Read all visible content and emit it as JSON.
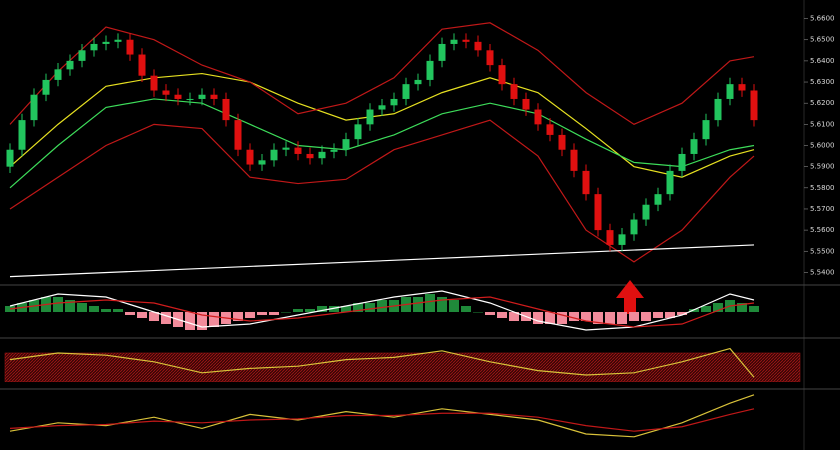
{
  "chart_data": [
    {
      "type": "candlestick",
      "up_color": "#22c55e",
      "down_color": "#e01010",
      "open": [
        5.59,
        5.598,
        5.612,
        5.624,
        5.631,
        5.636,
        5.64,
        5.645,
        5.648,
        5.649,
        5.65,
        5.643,
        5.633,
        5.626,
        5.624,
        5.622,
        5.622,
        5.624,
        5.622,
        5.612,
        5.598,
        5.591,
        5.593,
        5.598,
        5.599,
        5.596,
        5.594,
        5.597,
        5.598,
        5.603,
        5.61,
        5.617,
        5.619,
        5.622,
        5.629,
        5.631,
        5.64,
        5.648,
        5.65,
        5.649,
        5.645,
        5.638,
        5.629,
        5.622,
        5.617,
        5.61,
        5.605,
        5.598,
        5.588,
        5.577,
        5.56,
        5.553,
        5.558,
        5.565,
        5.572,
        5.577,
        5.588,
        5.596,
        5.603,
        5.612,
        5.622,
        5.629,
        5.626
      ],
      "high": [
        5.601,
        5.615,
        5.627,
        5.634,
        5.639,
        5.643,
        5.648,
        5.651,
        5.652,
        5.653,
        5.653,
        5.646,
        5.636,
        5.629,
        5.627,
        5.625,
        5.627,
        5.627,
        5.625,
        5.615,
        5.601,
        5.596,
        5.601,
        5.602,
        5.602,
        5.599,
        5.6,
        5.601,
        5.606,
        5.613,
        5.62,
        5.622,
        5.625,
        5.632,
        5.634,
        5.643,
        5.651,
        5.653,
        5.653,
        5.652,
        5.648,
        5.641,
        5.632,
        5.625,
        5.62,
        5.613,
        5.608,
        5.601,
        5.591,
        5.58,
        5.563,
        5.561,
        5.568,
        5.575,
        5.58,
        5.591,
        5.599,
        5.606,
        5.615,
        5.625,
        5.632,
        5.632,
        5.629
      ],
      "low": [
        5.587,
        5.595,
        5.609,
        5.621,
        5.628,
        5.633,
        5.637,
        5.642,
        5.645,
        5.646,
        5.64,
        5.63,
        5.623,
        5.621,
        5.619,
        5.619,
        5.619,
        5.619,
        5.609,
        5.595,
        5.588,
        5.588,
        5.59,
        5.595,
        5.593,
        5.591,
        5.591,
        5.594,
        5.595,
        5.6,
        5.607,
        5.614,
        5.616,
        5.619,
        5.626,
        5.628,
        5.637,
        5.645,
        5.646,
        5.642,
        5.635,
        5.626,
        5.619,
        5.614,
        5.607,
        5.602,
        5.595,
        5.585,
        5.574,
        5.557,
        5.55,
        5.55,
        5.555,
        5.562,
        5.569,
        5.574,
        5.585,
        5.593,
        5.6,
        5.609,
        5.619,
        5.623,
        5.609
      ],
      "close": [
        5.598,
        5.612,
        5.624,
        5.631,
        5.636,
        5.64,
        5.645,
        5.648,
        5.649,
        5.65,
        5.643,
        5.633,
        5.626,
        5.624,
        5.622,
        5.622,
        5.624,
        5.622,
        5.612,
        5.598,
        5.591,
        5.593,
        5.598,
        5.599,
        5.596,
        5.594,
        5.597,
        5.598,
        5.603,
        5.61,
        5.617,
        5.619,
        5.622,
        5.629,
        5.631,
        5.64,
        5.648,
        5.65,
        5.649,
        5.645,
        5.638,
        5.629,
        5.622,
        5.617,
        5.61,
        5.605,
        5.598,
        5.588,
        5.577,
        5.56,
        5.553,
        5.558,
        5.565,
        5.572,
        5.577,
        5.588,
        5.596,
        5.603,
        5.612,
        5.622,
        5.629,
        5.626,
        5.612
      ],
      "overlays": [
        {
          "color": "#e6e021",
          "x": [
            0,
            4,
            8,
            12,
            16,
            20,
            24,
            28,
            32,
            36,
            40,
            44,
            48,
            52,
            56,
            60,
            62
          ],
          "values": [
            5.59,
            5.61,
            5.628,
            5.632,
            5.634,
            5.63,
            5.62,
            5.612,
            5.615,
            5.625,
            5.632,
            5.625,
            5.608,
            5.59,
            5.585,
            5.595,
            5.598
          ]
        },
        {
          "color": "#3ddc5a",
          "x": [
            0,
            4,
            8,
            12,
            16,
            20,
            24,
            28,
            32,
            36,
            40,
            44,
            48,
            52,
            56,
            60,
            62
          ],
          "values": [
            5.58,
            5.6,
            5.618,
            5.622,
            5.62,
            5.61,
            5.6,
            5.598,
            5.605,
            5.615,
            5.62,
            5.615,
            5.603,
            5.592,
            5.59,
            5.598,
            5.6
          ]
        },
        {
          "color": "#c01818",
          "x": [
            0,
            4,
            8,
            12,
            16,
            20,
            24,
            28,
            32,
            36,
            40,
            44,
            48,
            52,
            56,
            60,
            62
          ],
          "values": [
            5.61,
            5.635,
            5.656,
            5.65,
            5.638,
            5.63,
            5.615,
            5.62,
            5.632,
            5.655,
            5.658,
            5.645,
            5.625,
            5.61,
            5.62,
            5.64,
            5.642
          ]
        },
        {
          "color": "#c01818",
          "x": [
            0,
            4,
            8,
            12,
            16,
            20,
            24,
            28,
            32,
            36,
            40,
            44,
            48,
            52,
            56,
            60,
            62
          ],
          "values": [
            5.57,
            5.585,
            5.6,
            5.61,
            5.608,
            5.585,
            5.582,
            5.584,
            5.598,
            5.605,
            5.612,
            5.595,
            5.56,
            5.545,
            5.56,
            5.585,
            5.595
          ]
        },
        {
          "color": "#ffffff",
          "x": [
            0,
            62
          ],
          "values": [
            5.538,
            5.553
          ]
        }
      ],
      "ylim": [
        5.535,
        5.665
      ],
      "yticks": [
        {
          "value": 5.66,
          "label": "5.6600"
        },
        {
          "value": 5.65,
          "label": "5.6500"
        },
        {
          "value": 5.64,
          "label": "5.6400"
        },
        {
          "value": 5.63,
          "label": "5.6300"
        },
        {
          "value": 5.62,
          "label": "5.6200"
        },
        {
          "value": 5.61,
          "label": "5.6100"
        },
        {
          "value": 5.6,
          "label": "5.6000"
        },
        {
          "value": 5.59,
          "label": "5.5900"
        },
        {
          "value": 5.58,
          "label": "5.5800"
        },
        {
          "value": 5.57,
          "label": "5.5700"
        },
        {
          "value": 5.56,
          "label": "5.5600"
        },
        {
          "value": 5.55,
          "label": "5.5500"
        },
        {
          "value": 5.54,
          "label": "5.5400"
        }
      ]
    },
    {
      "type": "macd",
      "pos_color": "#1f8a3a",
      "neg_color": "#f28b9b",
      "values": [
        2,
        3,
        4,
        5,
        5,
        4,
        3,
        2,
        1,
        1,
        -1,
        -2,
        -3,
        -4,
        -5,
        -6,
        -6,
        -5,
        -4,
        -3,
        -2,
        -1,
        -1,
        0,
        1,
        1,
        2,
        2,
        2,
        3,
        3,
        4,
        4,
        5,
        5,
        6,
        5,
        4,
        2,
        0,
        -1,
        -2,
        -3,
        -3,
        -4,
        -4,
        -4,
        -3,
        -3,
        -4,
        -4,
        -4,
        -3,
        -3,
        -2,
        -2,
        -1,
        1,
        2,
        3,
        4,
        3,
        2
      ],
      "series": [
        {
          "color": "#ffffff",
          "x": [
            0,
            4,
            8,
            12,
            16,
            20,
            24,
            28,
            32,
            36,
            40,
            44,
            48,
            52,
            56,
            60,
            62
          ],
          "values": [
            2,
            6,
            5,
            0,
            -5,
            -4,
            -1,
            2,
            5,
            7,
            3,
            -3,
            -6,
            -5,
            -1,
            6,
            4
          ]
        },
        {
          "color": "#d01c1c",
          "x": [
            0,
            4,
            8,
            12,
            16,
            20,
            24,
            28,
            32,
            36,
            40,
            44,
            48,
            52,
            56,
            60,
            62
          ],
          "values": [
            1,
            3,
            4,
            3,
            -1,
            -3,
            -2,
            0,
            2,
            4,
            5,
            1,
            -3,
            -5,
            -4,
            2,
            3
          ]
        }
      ],
      "ylim": [
        -8,
        8
      ]
    },
    {
      "type": "line",
      "band": [
        10,
        75
      ],
      "band_color": "#b01818",
      "series": [
        {
          "color": "#d9c23a",
          "x": [
            0,
            4,
            8,
            12,
            16,
            20,
            24,
            28,
            32,
            36,
            40,
            44,
            48,
            52,
            56,
            60,
            62
          ],
          "values": [
            60,
            75,
            70,
            55,
            30,
            40,
            45,
            60,
            65,
            80,
            55,
            35,
            25,
            30,
            55,
            85,
            20
          ]
        }
      ],
      "ylim": [
        0,
        100
      ]
    },
    {
      "type": "line",
      "series": [
        {
          "color": "#d9c23a",
          "x": [
            0,
            4,
            8,
            12,
            16,
            20,
            24,
            28,
            32,
            36,
            40,
            44,
            48,
            52,
            56,
            60,
            62
          ],
          "values": [
            30,
            45,
            40,
            55,
            35,
            60,
            50,
            65,
            55,
            70,
            60,
            50,
            25,
            20,
            45,
            80,
            95
          ]
        },
        {
          "color": "#c01818",
          "x": [
            0,
            4,
            8,
            12,
            16,
            20,
            24,
            28,
            32,
            36,
            40,
            44,
            48,
            52,
            56,
            60,
            62
          ],
          "values": [
            35,
            40,
            42,
            48,
            45,
            50,
            52,
            58,
            58,
            62,
            62,
            55,
            40,
            30,
            38,
            60,
            70
          ]
        }
      ],
      "ylim": [
        0,
        100
      ]
    }
  ]
}
